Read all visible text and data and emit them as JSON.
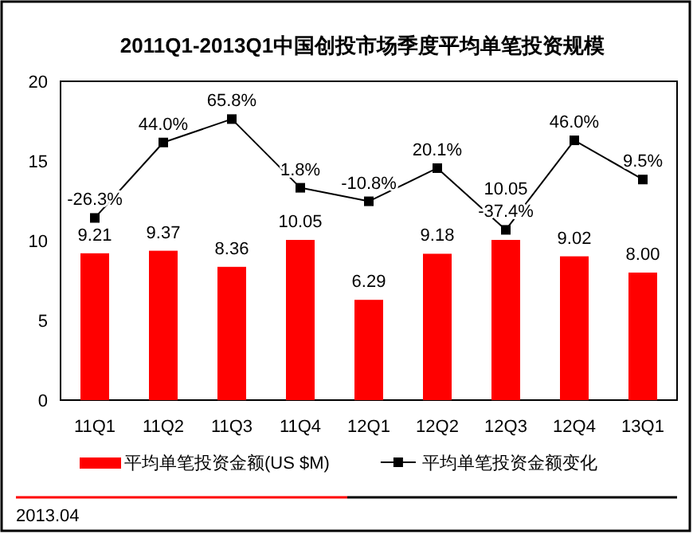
{
  "chart_data": {
    "type": "bar",
    "title": "2011Q1-2013Q1中国创投市场季度平均单笔投资规模",
    "categories": [
      "11Q1",
      "11Q2",
      "11Q3",
      "11Q4",
      "12Q1",
      "12Q2",
      "12Q3",
      "12Q4",
      "13Q1"
    ],
    "series": [
      {
        "name": "平均单笔投资金额(US $M)",
        "color": "#ff0000",
        "values": [
          9.21,
          9.37,
          8.36,
          10.05,
          6.29,
          9.18,
          10.05,
          9.02,
          8.0
        ],
        "value_labels": [
          "9.21",
          "9.37",
          "8.36",
          "10.05",
          "6.29",
          "9.18",
          "10.05",
          "9.02",
          "8.00"
        ]
      },
      {
        "name": "平均单笔投资金额变化",
        "type": "line",
        "axis": "y2",
        "color": "#000000",
        "values": [
          -26.3,
          44.0,
          65.8,
          1.8,
          -10.8,
          20.1,
          -37.4,
          46.0,
          9.5
        ],
        "value_labels": [
          "-26.3%",
          "44.0%",
          "65.8%",
          "1.8%",
          "-10.8%",
          "20.1%",
          "-37.4%",
          "46.0%",
          "9.5%"
        ]
      }
    ],
    "ylim": [
      0,
      20
    ],
    "yticks": [
      0,
      5,
      10,
      15,
      20
    ],
    "y2lim": [
      -196,
      101
    ],
    "data_labels": true,
    "marker": "square",
    "grid": false,
    "legend": "bottom",
    "tick_labels": [
      "x",
      "y"
    ],
    "annotations": [
      "2013.04"
    ]
  }
}
